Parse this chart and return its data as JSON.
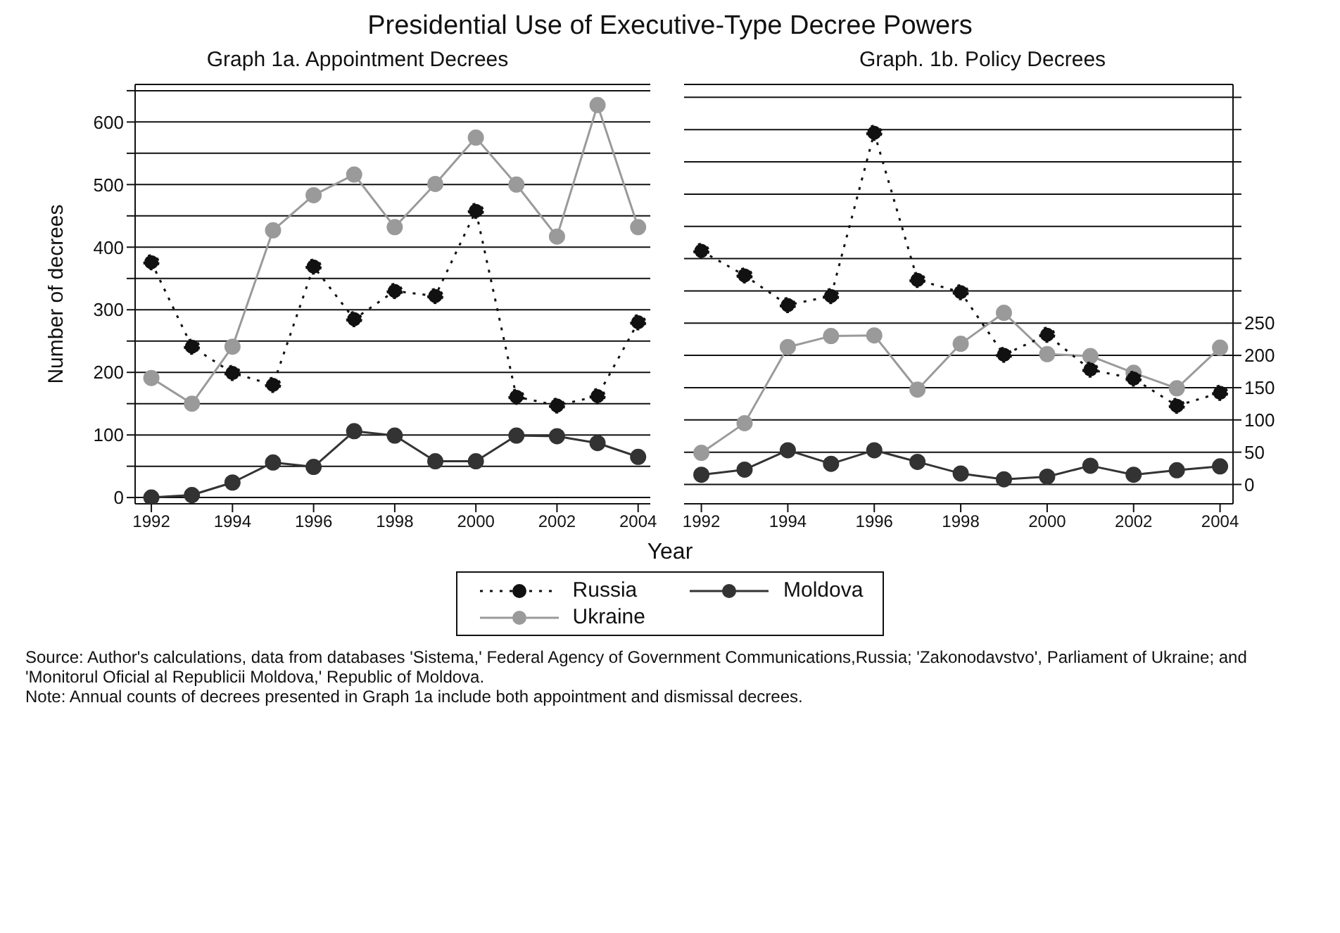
{
  "chart_data": [
    {
      "type": "line",
      "title": "Presidential Use of Executive-Type Decree Powers",
      "subtitle": "Graph 1a. Appointment Decrees",
      "xlabel": "Year",
      "ylabel": "Number of decrees",
      "x": [
        1992,
        1993,
        1994,
        1995,
        1996,
        1997,
        1998,
        1999,
        2000,
        2001,
        2002,
        2003,
        2004
      ],
      "series": [
        {
          "name": "Russia",
          "color": "#111111",
          "line_style": "dotted",
          "values": [
            376,
            241,
            199,
            180,
            369,
            285,
            330,
            322,
            458,
            161,
            147,
            162,
            280
          ]
        },
        {
          "name": "Moldova",
          "color": "#333333",
          "line_style": "solid",
          "values": [
            0,
            4,
            24,
            56,
            49,
            106,
            99,
            58,
            58,
            99,
            98,
            87,
            65
          ]
        },
        {
          "name": "Ukraine",
          "color": "#9a9a9a",
          "line_style": "solid",
          "values": [
            191,
            150,
            241,
            427,
            483,
            516,
            432,
            501,
            575,
            500,
            417,
            627,
            432
          ]
        }
      ],
      "xlim": [
        1991.6,
        2004.3
      ],
      "xticks": [
        1992,
        1994,
        1996,
        1998,
        2000,
        2002,
        2004
      ],
      "ylim": [
        -10,
        660
      ],
      "yticks": [
        0,
        {
          "value": 50,
          "label": null
        },
        100,
        {
          "value": 150,
          "label": null
        },
        200,
        {
          "value": 250,
          "label": null
        },
        300,
        {
          "value": 350,
          "label": null
        },
        400,
        {
          "value": 450,
          "label": null
        },
        500,
        {
          "value": 550,
          "label": null
        },
        600,
        {
          "value": 650,
          "label": null
        }
      ],
      "grid": "y",
      "marker": "circle",
      "legend": "bottom",
      "annotations": [
        "Source: Author's calculations, data from databases 'Sistema,' Federal Agency of Government Communications,Russia; 'Zakonodavstvo', Parliament of Ukraine; and 'Monitorul Oficial al Republicii Moldova,' Republic of Moldova.",
        "Note: Annual counts of decrees presented in Graph 1a include both appointment and dismissal decrees."
      ]
    },
    {
      "type": "line",
      "subtitle": "Graph. 1b. Policy Decrees",
      "x": [
        1992,
        1993,
        1994,
        1995,
        1996,
        1997,
        1998,
        1999,
        2000,
        2001,
        2002,
        2003,
        2004
      ],
      "series": [
        {
          "color": "#111111",
          "line_style": "dotted",
          "axis": "y2",
          "values": [
            362,
            324,
            278,
            292,
            545,
            317,
            298,
            201,
            232,
            178,
            164,
            122,
            142
          ]
        },
        {
          "color": "#333333",
          "line_style": "solid",
          "axis": "y2",
          "values": [
            15,
            23,
            53,
            32,
            53,
            35,
            17,
            8,
            12,
            29,
            15,
            22,
            28
          ]
        },
        {
          "color": "#9a9a9a",
          "line_style": "solid",
          "axis": "y2",
          "values": [
            49,
            95,
            213,
            230,
            231,
            147,
            218,
            266,
            202,
            199,
            173,
            149,
            212
          ]
        }
      ],
      "xlim": [
        1991.6,
        2004.3
      ],
      "xticks": [
        1992,
        1994,
        1996,
        1998,
        2000,
        2002,
        2004
      ],
      "y2lim": [
        -30,
        620
      ],
      "y2ticks": [
        0,
        50,
        100,
        150,
        200,
        250,
        {
          "value": 300,
          "label": null
        },
        {
          "value": 350,
          "label": null
        },
        {
          "value": 400,
          "label": null
        },
        {
          "value": 450,
          "label": null
        },
        {
          "value": 500,
          "label": null
        },
        {
          "value": 550,
          "label": null
        },
        {
          "value": 600,
          "label": null
        }
      ],
      "grid": "y",
      "marker": "circle"
    }
  ]
}
